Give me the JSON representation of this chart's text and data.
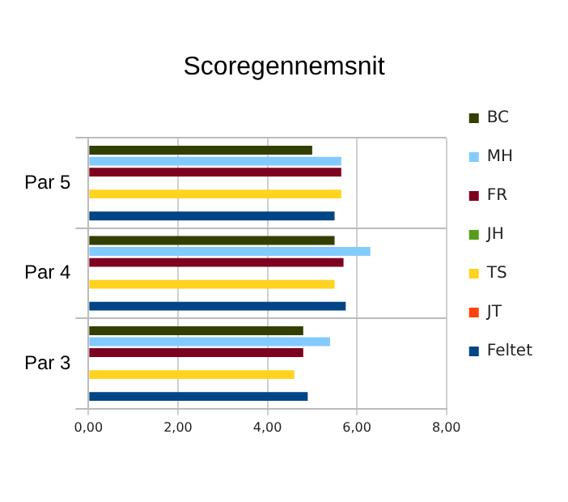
{
  "chart_data": {
    "type": "bar",
    "orientation": "horizontal",
    "title": "Scoregennemsnit",
    "categories": [
      "Par 5",
      "Par 4",
      "Par 3"
    ],
    "series": [
      {
        "name": "BC",
        "color": "#333f00",
        "values": [
          5.0,
          5.5,
          4.8
        ]
      },
      {
        "name": "MH",
        "color": "#83caff",
        "values": [
          5.65,
          6.3,
          5.4
        ]
      },
      {
        "name": "FR",
        "color": "#7e0021",
        "values": [
          5.65,
          5.7,
          4.8
        ]
      },
      {
        "name": "JH",
        "color": "#579d1c",
        "values": [
          null,
          null,
          null
        ]
      },
      {
        "name": "TS",
        "color": "#ffd320",
        "values": [
          5.65,
          5.5,
          4.6
        ]
      },
      {
        "name": "JT",
        "color": "#ff420e",
        "values": [
          null,
          null,
          null
        ]
      },
      {
        "name": "Feltet",
        "color": "#004586",
        "values": [
          5.5,
          5.75,
          4.9
        ]
      }
    ],
    "xlim": [
      0,
      8
    ],
    "xticks": [
      {
        "value": 0,
        "label": "0,00"
      },
      {
        "value": 2,
        "label": "2,00"
      },
      {
        "value": 4,
        "label": "4,00"
      },
      {
        "value": 6,
        "label": "6,00"
      },
      {
        "value": 8,
        "label": "8,00"
      }
    ],
    "grid": true,
    "legend": "right"
  }
}
